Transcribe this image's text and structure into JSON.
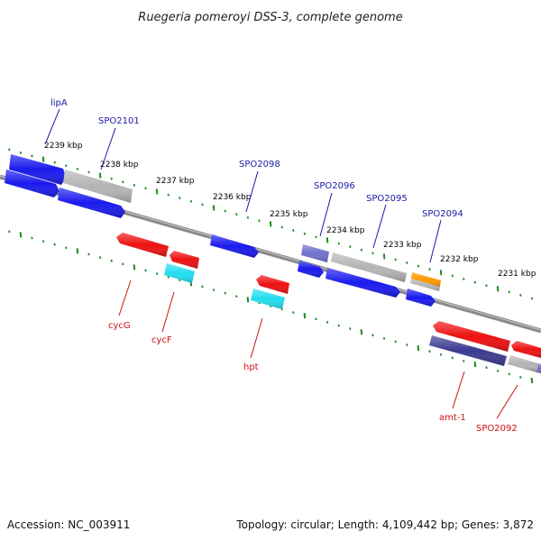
{
  "title": "Ruegeria pomeroyi DSS-3, complete genome",
  "footer": {
    "accession": "Accession: NC_003911",
    "topology": "Topology: circular; Length: 4,109,442 bp; Genes: 3,872"
  },
  "colors": {
    "backbone": "#8a8a8a",
    "tick": "#1e8a1e",
    "top_label": "#1a1aa8",
    "bottom_label": "#cc1111",
    "blue": "#1a1aee",
    "gray": "#b4b4b4",
    "red": "#ee1111",
    "cyan": "#22ddee",
    "purple": "#7070cc",
    "navy": "#3a3a90",
    "orange": "#ff9900"
  },
  "kbp_labels": [
    "2239 kbp",
    "2238 kbp",
    "2237 kbp",
    "2236 kbp",
    "2235 kbp",
    "2234 kbp",
    "2233 kbp",
    "2232 kbp",
    "2231 kbp"
  ],
  "top_gene_labels": [
    "lipA",
    "SPO2101",
    "SPO2098",
    "SPO2096",
    "SPO2095",
    "SPO2094"
  ],
  "bottom_gene_labels": [
    "cycG",
    "cycF",
    "hpt",
    "amt-1",
    "SPO2092"
  ]
}
